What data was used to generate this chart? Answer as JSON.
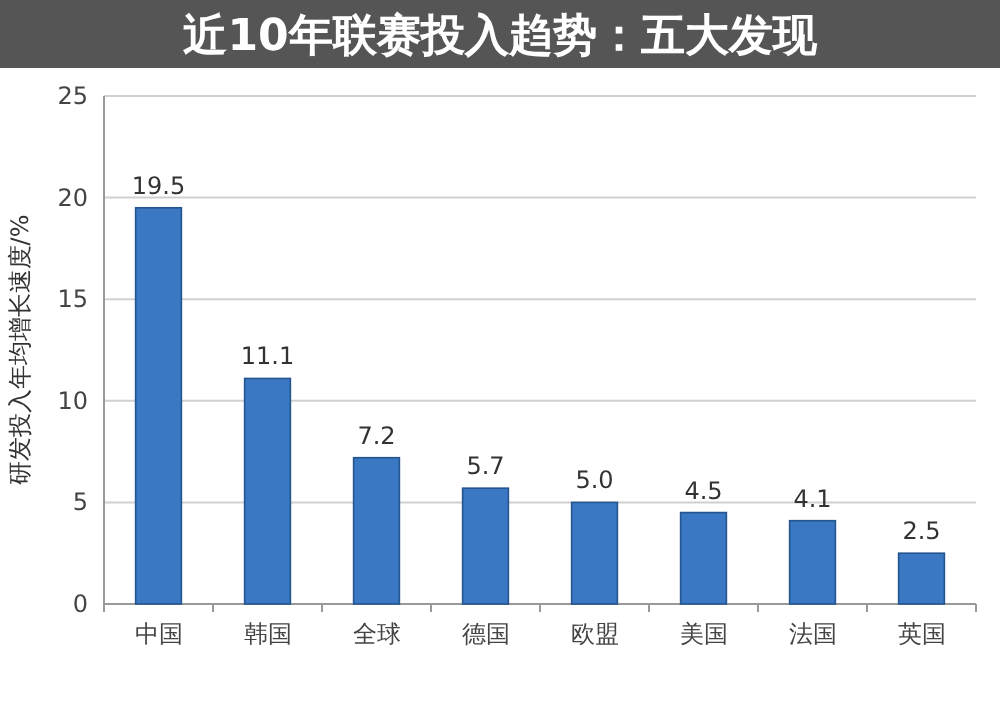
{
  "chart_data": {
    "type": "bar",
    "title": "近10年联赛投入趋势：五大发现",
    "ylabel": "研发投入年均增长速度/%",
    "categories": [
      "中国",
      "韩国",
      "全球",
      "德国",
      "欧盟",
      "美国",
      "法国",
      "英国"
    ],
    "values": [
      19.5,
      11.1,
      7.2,
      5.7,
      5.0,
      4.5,
      4.1,
      2.5
    ],
    "value_labels": [
      "19.5",
      "11.1",
      "7.2",
      "5.7",
      "5.0",
      "4.5",
      "4.1",
      "2.5"
    ],
    "color": "#3a78c3",
    "ylim": [
      0,
      25
    ],
    "yticks": [
      0,
      5,
      10,
      15,
      20,
      25
    ],
    "grid": "y"
  }
}
